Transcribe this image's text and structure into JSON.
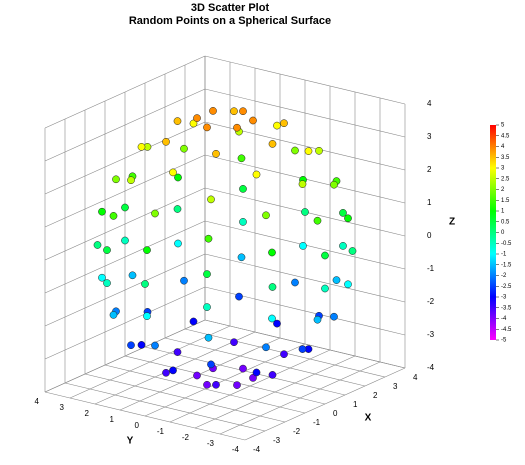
{
  "chart_data": {
    "type": "scatter3d",
    "title": "3D Scatter Plot",
    "subtitle": "Random Points on a Spherical Surface",
    "xlabel": "X",
    "ylabel": "Y",
    "zlabel": "Z",
    "xlim": [
      -4,
      4
    ],
    "ylim": [
      -4,
      4
    ],
    "zlim": [
      -4,
      4
    ],
    "xticks": [
      -4,
      -3,
      -2,
      -1,
      0,
      1,
      2,
      3,
      4
    ],
    "yticks": [
      -4,
      -3,
      -2,
      -1,
      0,
      1,
      2,
      3,
      4
    ],
    "zticks": [
      -4,
      -3,
      -2,
      -1,
      0,
      1,
      2,
      3,
      4
    ],
    "grid": true,
    "colorscale": [
      "#ff00ff",
      "#0000ff",
      "#00ffff",
      "#00ff00",
      "#ffff00",
      "#ff0000"
    ],
    "colorbar_lim": [
      -5,
      5
    ],
    "colorbar_ticks": [
      -5,
      -4.5,
      -4,
      -3.5,
      -3,
      -2.5,
      -2,
      -1.5,
      -1,
      -0.5,
      0,
      0.5,
      1,
      1.5,
      2,
      2.5,
      3,
      3.5,
      4,
      4.5,
      5
    ],
    "x": [
      0.9,
      0.4,
      -0.4,
      -0.9,
      -0.4,
      0.4,
      1.7,
      0,
      -1.7,
      -1.7,
      0,
      1.7,
      2.6,
      1.3,
      -1.3,
      -2.6,
      -1.3,
      1.3,
      2.7,
      0,
      -2.7,
      -2.7,
      0,
      2.7,
      3.5,
      1.7,
      -1.7,
      -3.5,
      -1.7,
      1.7,
      3.2,
      0,
      -3.2,
      -3.2,
      0,
      3.2,
      3.9,
      1.9,
      -1.9,
      -3.9,
      -1.9,
      1.9,
      3.4,
      0,
      -3.4,
      -3.4,
      0,
      3.4,
      4,
      2,
      -2,
      -4,
      -2,
      2,
      3.4,
      0,
      -3.4,
      -3.4,
      0,
      3.4,
      3.9,
      1.9,
      -1.9,
      -3.9,
      -1.9,
      1.9,
      3.2,
      0,
      -3.2,
      -3.2,
      0,
      3.2,
      3.5,
      1.7,
      -1.7,
      -3.5,
      -1.7,
      1.7,
      2.7,
      0,
      -2.7,
      -2.7,
      0,
      2.7,
      2.6,
      1.3,
      -1.3,
      -2.6,
      -1.3,
      1.3,
      1.7,
      0,
      -1.7,
      -1.7,
      0,
      1.7,
      0.9,
      0.4,
      -0.4,
      -0.9,
      -0.4,
      0.4
    ],
    "y": [
      0,
      0.8,
      0.8,
      0,
      -0.8,
      -0.8,
      1,
      1.9,
      1,
      -1,
      -1.9,
      -1,
      0,
      2.3,
      2.3,
      0,
      -2.3,
      -2.3,
      1.6,
      3.1,
      1.6,
      -1.6,
      -3.1,
      -1.6,
      0,
      3,
      3,
      0,
      -3,
      -3,
      1.9,
      3.7,
      1.9,
      -1.9,
      -3.7,
      -1.9,
      0,
      3.4,
      3.4,
      0,
      -3.4,
      -3.4,
      2,
      4,
      2,
      -2,
      -4,
      -2,
      0,
      3.5,
      3.5,
      0,
      -3.5,
      -3.5,
      2,
      4,
      2,
      -2,
      -4,
      -2,
      0,
      3.4,
      3.4,
      0,
      -3.4,
      -3.4,
      1.9,
      3.7,
      1.9,
      -1.9,
      -3.7,
      -1.9,
      0,
      3,
      3,
      0,
      -3,
      -3,
      1.6,
      3.1,
      1.6,
      -1.6,
      -3.1,
      -1.6,
      0,
      2.3,
      2.3,
      0,
      -2.3,
      -2.3,
      1,
      1.9,
      1,
      -1,
      -1.9,
      -1,
      0,
      0.8,
      0.8,
      0,
      -0.8,
      -0.8
    ],
    "z": [
      -3.9,
      -3.9,
      -3.9,
      -3.9,
      -3.9,
      -3.9,
      -3.5,
      -3.5,
      -3.5,
      -3.5,
      -3.5,
      -3.5,
      -3,
      -3,
      -3,
      -3,
      -3,
      -3,
      -2.5,
      -2.5,
      -2.5,
      -2.5,
      -2.5,
      -2.5,
      -2,
      -2,
      -2,
      -2,
      -2,
      -2,
      -1.5,
      -1.5,
      -1.5,
      -1.5,
      -1.5,
      -1.5,
      -1,
      -1,
      -1,
      -1,
      -1,
      -1,
      -0.5,
      -0.5,
      -0.5,
      -0.5,
      -0.5,
      -0.5,
      0,
      0,
      0,
      0,
      0,
      0,
      0.5,
      0.5,
      0.5,
      0.5,
      0.5,
      0.5,
      1,
      1,
      1,
      1,
      1,
      1,
      1.5,
      1.5,
      1.5,
      1.5,
      1.5,
      1.5,
      2,
      2,
      2,
      2,
      2,
      2,
      2.5,
      2.5,
      2.5,
      2.5,
      2.5,
      2.5,
      3,
      3,
      3,
      3,
      3,
      3,
      3.5,
      3.5,
      3.5,
      3.5,
      3.5,
      3.5,
      3.9,
      3.9,
      3.9,
      3.9,
      3.9,
      3.9
    ]
  }
}
